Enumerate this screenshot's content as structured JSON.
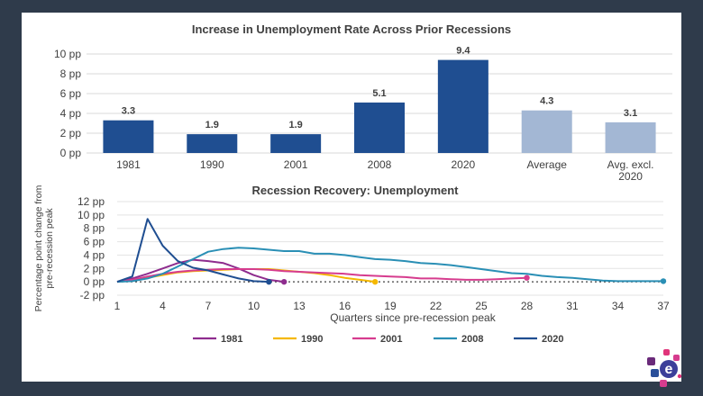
{
  "chart_data": [
    {
      "type": "bar",
      "title": "Increase in Unemployment Rate Across Prior Recessions",
      "categories": [
        "1981",
        "1990",
        "2001",
        "2008",
        "2020",
        "Average",
        "Avg. excl. 2020"
      ],
      "category_lines": [
        [
          "1981"
        ],
        [
          "1990"
        ],
        [
          "2001"
        ],
        [
          "2008"
        ],
        [
          "2020"
        ],
        [
          "Average"
        ],
        [
          "Avg. excl.",
          "2020"
        ]
      ],
      "values": [
        3.3,
        1.9,
        1.9,
        5.1,
        9.4,
        4.3,
        3.1
      ],
      "value_labels": [
        "3.3",
        "1.9",
        "1.9",
        "5.1",
        "9.4",
        "4.3",
        "3.1"
      ],
      "colors": [
        "#1f4e91",
        "#1f4e91",
        "#1f4e91",
        "#1f4e91",
        "#1f4e91",
        "#a3b7d4",
        "#a3b7d4"
      ],
      "ylim": [
        0,
        10
      ],
      "yticks": [
        0,
        2,
        4,
        6,
        8,
        10
      ],
      "ytick_labels": [
        "0 pp",
        "2 pp",
        "4 pp",
        "6 pp",
        "8 pp",
        "10 pp"
      ],
      "grid": true,
      "xlabel": "",
      "ylabel": ""
    },
    {
      "type": "line",
      "title": "Recession Recovery: Unemployment",
      "xlabel": "Quarters since pre-recession peak",
      "ylabel_lines": [
        "Percentage point change from",
        "pre-recession peak"
      ],
      "xlim": [
        1,
        37
      ],
      "xticks": [
        1,
        4,
        7,
        10,
        13,
        16,
        19,
        22,
        25,
        28,
        31,
        34,
        37
      ],
      "ylim": [
        -2,
        12
      ],
      "yticks": [
        -2,
        0,
        2,
        4,
        6,
        8,
        10,
        12
      ],
      "ytick_labels": [
        "-2 pp",
        "0 pp",
        "2 pp",
        "4 pp",
        "6 pp",
        "8 pp",
        "10 pp",
        "12 pp"
      ],
      "zero_line": "dotted",
      "legend_position": "bottom",
      "series": [
        {
          "name": "1981",
          "color": "#8e2c8e",
          "x": [
            1,
            2,
            3,
            4,
            5,
            6,
            7,
            8,
            9,
            10,
            11,
            12
          ],
          "y": [
            0,
            0.5,
            1.2,
            2.0,
            2.8,
            3.3,
            3.1,
            2.8,
            2.0,
            1.0,
            0.3,
            0
          ]
        },
        {
          "name": "1990",
          "color": "#f5b800",
          "x": [
            1,
            2,
            3,
            4,
            5,
            6,
            7,
            8,
            9,
            10,
            11,
            12,
            13,
            14,
            15,
            16,
            17,
            18
          ],
          "y": [
            0,
            0.2,
            0.6,
            1.0,
            1.4,
            1.6,
            1.7,
            1.8,
            1.9,
            1.9,
            1.9,
            1.7,
            1.5,
            1.3,
            1.0,
            0.6,
            0.3,
            0
          ]
        },
        {
          "name": "2001",
          "color": "#d63c8e",
          "x": [
            1,
            2,
            3,
            4,
            5,
            6,
            7,
            8,
            9,
            10,
            11,
            12,
            13,
            14,
            15,
            16,
            17,
            18,
            19,
            20,
            21,
            22,
            23,
            24,
            25,
            26,
            27,
            28
          ],
          "y": [
            0,
            0.3,
            0.8,
            1.2,
            1.5,
            1.7,
            1.8,
            1.9,
            1.9,
            1.9,
            1.8,
            1.6,
            1.5,
            1.4,
            1.3,
            1.2,
            1.0,
            0.9,
            0.8,
            0.7,
            0.5,
            0.5,
            0.4,
            0.3,
            0.3,
            0.4,
            0.5,
            0.6
          ]
        },
        {
          "name": "2008",
          "color": "#2a8fb5",
          "x": [
            1,
            2,
            3,
            4,
            5,
            6,
            7,
            8,
            9,
            10,
            11,
            12,
            13,
            14,
            15,
            16,
            17,
            18,
            19,
            20,
            21,
            22,
            23,
            24,
            25,
            26,
            27,
            28,
            29,
            30,
            31,
            32,
            33,
            34,
            35,
            36,
            37
          ],
          "y": [
            0,
            0.1,
            0.5,
            1.2,
            2.3,
            3.4,
            4.5,
            4.9,
            5.1,
            5.0,
            4.8,
            4.6,
            4.6,
            4.2,
            4.2,
            4.0,
            3.7,
            3.4,
            3.3,
            3.1,
            2.8,
            2.7,
            2.5,
            2.2,
            1.9,
            1.6,
            1.3,
            1.2,
            0.9,
            0.7,
            0.6,
            0.4,
            0.2,
            0.1,
            0.1,
            0.1,
            0.1
          ]
        },
        {
          "name": "2020",
          "color": "#1f4e91",
          "x": [
            1,
            2,
            3,
            4,
            5,
            6,
            7,
            8,
            9,
            10,
            11
          ],
          "y": [
            0,
            0.8,
            9.4,
            5.4,
            3.1,
            2.1,
            1.7,
            1.1,
            0.5,
            0.1,
            0
          ]
        }
      ]
    }
  ]
}
